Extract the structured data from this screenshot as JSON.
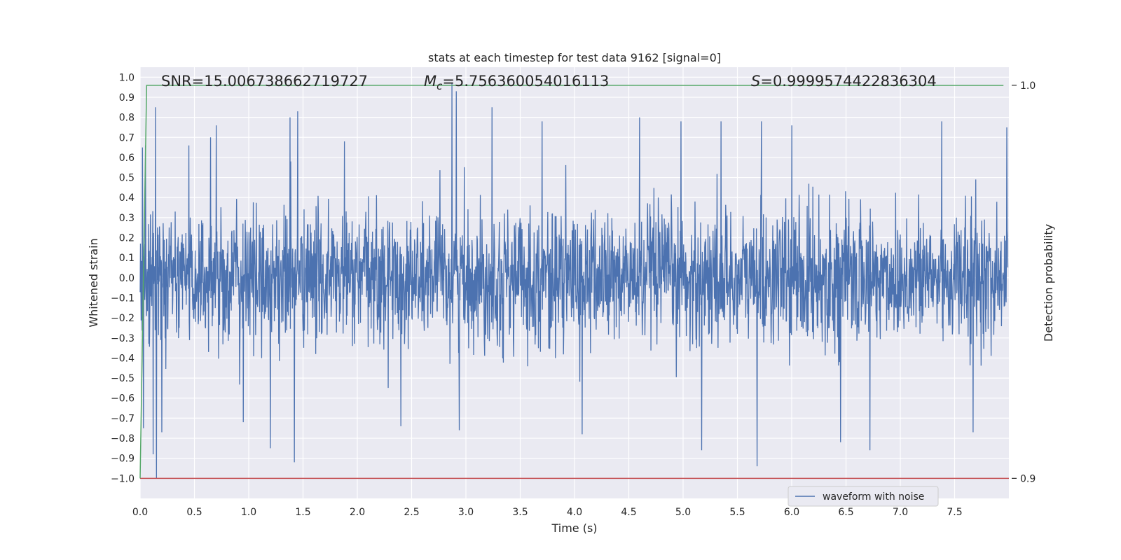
{
  "chart_data": {
    "type": "line",
    "title": "stats at each timestep for test data 9162 [signal=0]",
    "xlabel": "Time (s)",
    "ylabel": "Whitened strain",
    "y2label": "Detection probability",
    "xlim": [
      0.0,
      8.0
    ],
    "ylim": [
      -1.1,
      1.05
    ],
    "y2lim": [
      0.9,
      1.0
    ],
    "x_ticks": [
      "0.0",
      "0.5",
      "1.0",
      "1.5",
      "2.0",
      "2.5",
      "3.0",
      "3.5",
      "4.0",
      "4.5",
      "5.0",
      "5.5",
      "6.0",
      "6.5",
      "7.0",
      "7.5"
    ],
    "y_ticks": [
      "1.0",
      "0.9",
      "0.8",
      "0.7",
      "0.6",
      "0.5",
      "0.4",
      "0.3",
      "0.2",
      "0.1",
      "0.0",
      "-0.1",
      "-0.2",
      "-0.3",
      "-0.4",
      "-0.5",
      "-0.6",
      "-0.7",
      "-0.8",
      "-0.9",
      "-1.0"
    ],
    "y2_ticks": [
      "1.0",
      "0.9"
    ],
    "grid": true,
    "legend": {
      "placement": "lower-right",
      "entries": [
        "waveform with noise"
      ]
    },
    "annotations": {
      "snr_prefix": "SNR=",
      "snr_value": "15.006738662719727",
      "mc_symbol": "M",
      "mc_subscript": "c",
      "mc_value": "=5.756360054016113",
      "s_symbol": "S",
      "s_value": "=0.9999574422836304"
    },
    "series": [
      {
        "name": "waveform with noise",
        "color": "#4c72b0",
        "axis": "left",
        "description_stats": {
          "core_amplitude": 0.3,
          "peak_max": 0.97,
          "peak_min": -1.0
        },
        "spikes": [
          [
            0.02,
            0.65
          ],
          [
            0.03,
            -0.75
          ],
          [
            0.05,
            0.66
          ],
          [
            0.12,
            -0.88
          ],
          [
            0.14,
            0.85
          ],
          [
            0.15,
            -1.0
          ],
          [
            0.2,
            -0.77
          ],
          [
            0.45,
            0.66
          ],
          [
            0.65,
            0.7
          ],
          [
            0.7,
            0.76
          ],
          [
            0.95,
            -0.72
          ],
          [
            1.2,
            -0.85
          ],
          [
            1.38,
            0.8
          ],
          [
            1.42,
            -0.92
          ],
          [
            1.45,
            0.83
          ],
          [
            1.88,
            0.68
          ],
          [
            2.4,
            -0.74
          ],
          [
            2.87,
            0.97
          ],
          [
            2.91,
            0.93
          ],
          [
            2.94,
            -0.76
          ],
          [
            3.24,
            0.85
          ],
          [
            3.7,
            0.78
          ],
          [
            4.07,
            -0.78
          ],
          [
            4.6,
            0.8
          ],
          [
            4.98,
            0.78
          ],
          [
            5.17,
            -0.86
          ],
          [
            5.35,
            0.78
          ],
          [
            5.68,
            -0.94
          ],
          [
            5.72,
            0.78
          ],
          [
            6.0,
            0.76
          ],
          [
            6.45,
            -0.82
          ],
          [
            6.72,
            -0.86
          ],
          [
            7.38,
            0.78
          ],
          [
            7.67,
            -0.77
          ],
          [
            7.98,
            0.75
          ]
        ]
      },
      {
        "name": "",
        "color": "#55a868",
        "axis": "right",
        "x": [
          0.0,
          0.06,
          7.95
        ],
        "values": [
          0.9,
          0.99999,
          0.99996
        ]
      },
      {
        "name": "",
        "color": "#c44e52",
        "axis": "left",
        "x": [
          0.0,
          8.0
        ],
        "values": [
          -1.0,
          -1.0
        ]
      }
    ]
  }
}
